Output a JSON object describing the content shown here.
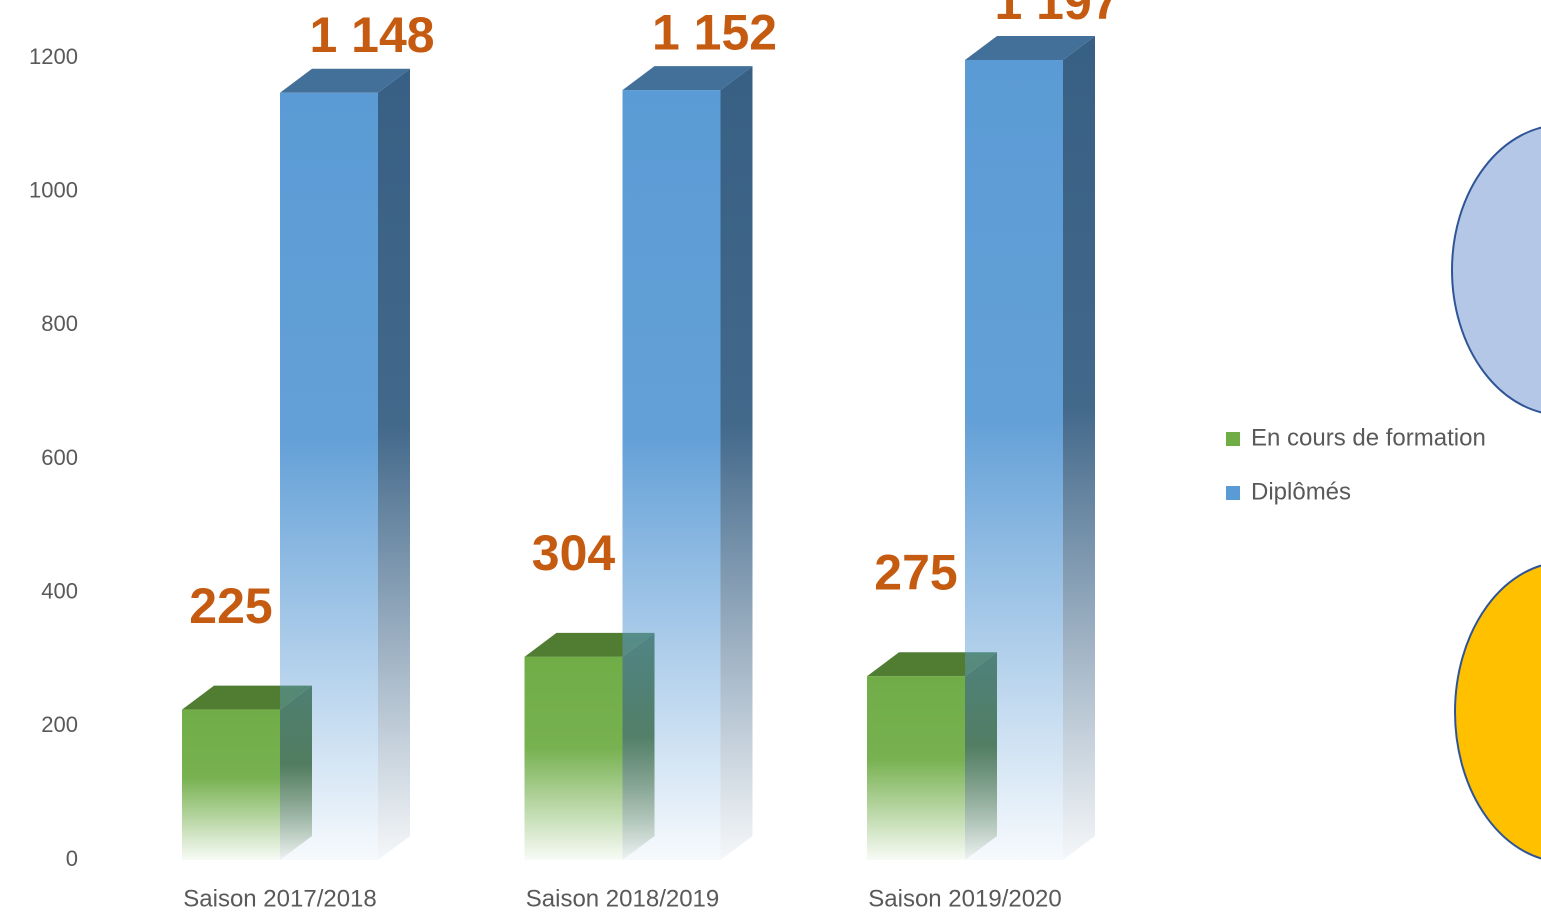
{
  "chart_data": {
    "type": "bar3d",
    "categories": [
      "Saison 2017/2018",
      "Saison 2018/2019",
      "Saison 2019/2020"
    ],
    "series": [
      {
        "name": "En cours de formation",
        "color": "#70ad47",
        "values": [
          225,
          304,
          275
        ],
        "value_labels": [
          "225",
          "304",
          "275"
        ]
      },
      {
        "name": "Diplômés",
        "color": "#5b9bd5",
        "values": [
          1148,
          1152,
          1197
        ],
        "value_labels": [
          "1 148",
          "1 152",
          "1 197"
        ]
      }
    ],
    "ylim": [
      0,
      1200
    ],
    "yticks": [
      0,
      200,
      400,
      600,
      800,
      1000,
      1200
    ],
    "grid": false,
    "legend": "right"
  }
}
